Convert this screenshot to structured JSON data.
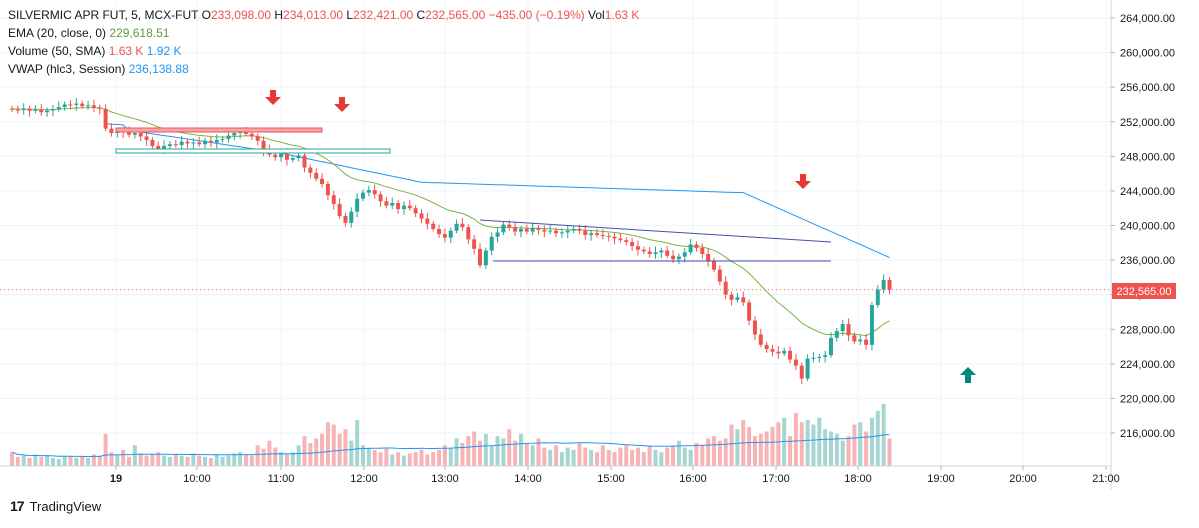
{
  "legend": {
    "symbol": "SILVERMIC APR FUT, 5, MCX-FUT",
    "open_label": "O",
    "open": "233,098.00",
    "high_label": "H",
    "high": "234,013.00",
    "low_label": "L",
    "low": "232,421.00",
    "close_label": "C",
    "close": "232,565.00",
    "change": "−435.00 (−0.19%)",
    "vol_label": "Vol",
    "vol": "1.63 K",
    "ema_label": "EMA (20, close, 0)",
    "ema_value": "229,618.51",
    "volume_label": "Volume (50, SMA)",
    "volume_value": "1.63 K",
    "volume_sma": "1.92 K",
    "vwap_label": "VWAP (hlc3, Session)",
    "vwap_value": "236,138.88"
  },
  "price_axis": {
    "ticks": [
      "264,000.00",
      "260,000.00",
      "256,000.00",
      "252,000.00",
      "248,000.00",
      "244,000.00",
      "240,000.00",
      "236,000.00",
      "232,000.00",
      "228,000.00",
      "224,000.00",
      "220,000.00",
      "216,000.00"
    ],
    "current_price_label": "232,565.00"
  },
  "time_axis": {
    "ticks": [
      "19",
      "10:00",
      "11:00",
      "12:00",
      "13:00",
      "14:00",
      "15:00",
      "16:00",
      "17:00",
      "18:00",
      "19:00",
      "20:00",
      "21:00"
    ]
  },
  "colors": {
    "up": "#26a69a",
    "down": "#ef5350",
    "ema": "#7cb342",
    "vwap": "#2196f3",
    "arrow_down": "#e53935",
    "arrow_up": "#00897b"
  },
  "footer": {
    "brand": "TradingView"
  },
  "chart_data": {
    "type": "candlestick",
    "ylim": [
      213000,
      265000
    ],
    "price_start": 253500,
    "closes": [
      253400,
      253350,
      253500,
      253250,
      253400,
      253100,
      253300,
      253450,
      253700,
      254000,
      253950,
      254100,
      253800,
      253900,
      253650,
      253500,
      251200,
      250700,
      250900,
      250800,
      250500,
      250700,
      250300,
      249900,
      249200,
      248800,
      249200,
      249400,
      249300,
      249700,
      249500,
      249600,
      249400,
      249800,
      249600,
      249900,
      250000,
      250400,
      250700,
      250900,
      250600,
      250300,
      249800,
      248700,
      248200,
      247900,
      248300,
      247600,
      247800,
      248100,
      246700,
      246100,
      245400,
      244800,
      243500,
      242500,
      241100,
      240300,
      241600,
      243100,
      243800,
      244100,
      243600,
      242800,
      242300,
      242600,
      241900,
      242300,
      242000,
      241400,
      240800,
      240200,
      239600,
      239000,
      238600,
      239400,
      240200,
      239800,
      238400,
      237300,
      235400,
      237100,
      238700,
      239200,
      240100,
      239800,
      239300,
      239600,
      239300,
      239700,
      239500,
      239300,
      239400,
      239100,
      239200,
      239400,
      239600,
      239400,
      238900,
      239100,
      238900,
      238800,
      238700,
      238500,
      238300,
      238100,
      237600,
      237200,
      237000,
      236700,
      236900,
      237100,
      236500,
      236100,
      236400,
      236900,
      237800,
      237400,
      236700,
      235900,
      234900,
      233500,
      232000,
      231400,
      231700,
      231100,
      229000,
      227400,
      226200,
      225700,
      225400,
      225200,
      225500,
      224500,
      223800,
      222300,
      224600,
      224700,
      224800,
      225000,
      227000,
      227800,
      228600,
      227300,
      226600,
      226800,
      226200,
      230800,
      232600,
      233700,
      232565
    ],
    "volumes": [
      12,
      8,
      9,
      7,
      10,
      8,
      9,
      7,
      6,
      9,
      8,
      7,
      8,
      7,
      10,
      9,
      28,
      12,
      10,
      14,
      8,
      18,
      11,
      9,
      10,
      12,
      9,
      8,
      10,
      9,
      8,
      11,
      9,
      8,
      7,
      10,
      8,
      9,
      11,
      12,
      10,
      9,
      18,
      15,
      22,
      16,
      12,
      10,
      12,
      18,
      26,
      20,
      24,
      28,
      38,
      36,
      28,
      32,
      22,
      40,
      18,
      16,
      14,
      12,
      15,
      10,
      12,
      9,
      11,
      12,
      14,
      10,
      12,
      14,
      18,
      16,
      24,
      20,
      26,
      30,
      22,
      28,
      18,
      26,
      24,
      32,
      22,
      28,
      20,
      18,
      24,
      16,
      14,
      18,
      12,
      16,
      14,
      20,
      16,
      14,
      12,
      18,
      14,
      12,
      16,
      18,
      14,
      16,
      12,
      18,
      14,
      12,
      16,
      18,
      22,
      16,
      14,
      20,
      18,
      24,
      26,
      22,
      24,
      36,
      32,
      40,
      34,
      26,
      28,
      30,
      34,
      38,
      42,
      26,
      46,
      38,
      40,
      36,
      42,
      32,
      30,
      28,
      22,
      26,
      36,
      38,
      30,
      42,
      48,
      54,
      24
    ]
  }
}
